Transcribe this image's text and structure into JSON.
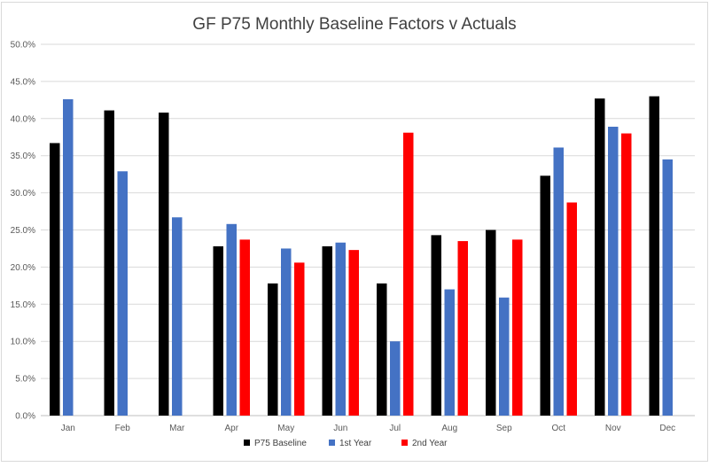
{
  "chart_data": {
    "type": "bar",
    "title": "GF P75 Monthly Baseline Factors v Actuals",
    "xlabel": "",
    "ylabel": "",
    "ylim": [
      0,
      50
    ],
    "y_ticks": [
      "0.0%",
      "5.0%",
      "10.0%",
      "15.0%",
      "20.0%",
      "25.0%",
      "30.0%",
      "35.0%",
      "40.0%",
      "45.0%",
      "50.0%"
    ],
    "grid": true,
    "legend_position": "bottom",
    "categories": [
      "Jan",
      "Feb",
      "Mar",
      "Apr",
      "May",
      "Jun",
      "Jul",
      "Aug",
      "Sep",
      "Oct",
      "Nov",
      "Dec"
    ],
    "series": [
      {
        "name": "P75 Baseline",
        "color": "#000000",
        "values": [
          36.7,
          41.1,
          40.8,
          22.8,
          17.8,
          22.8,
          17.8,
          24.3,
          25.0,
          32.3,
          42.7,
          43.0
        ]
      },
      {
        "name": "1st Year",
        "color": "#4472c4",
        "values": [
          42.6,
          32.9,
          26.7,
          25.8,
          22.5,
          23.3,
          10.0,
          17.0,
          15.9,
          36.1,
          38.9,
          34.5
        ]
      },
      {
        "name": "2nd Year",
        "color": "#ff0000",
        "values": [
          null,
          null,
          null,
          23.7,
          20.6,
          22.3,
          38.1,
          23.5,
          23.7,
          28.7,
          38.0,
          null
        ]
      }
    ]
  }
}
